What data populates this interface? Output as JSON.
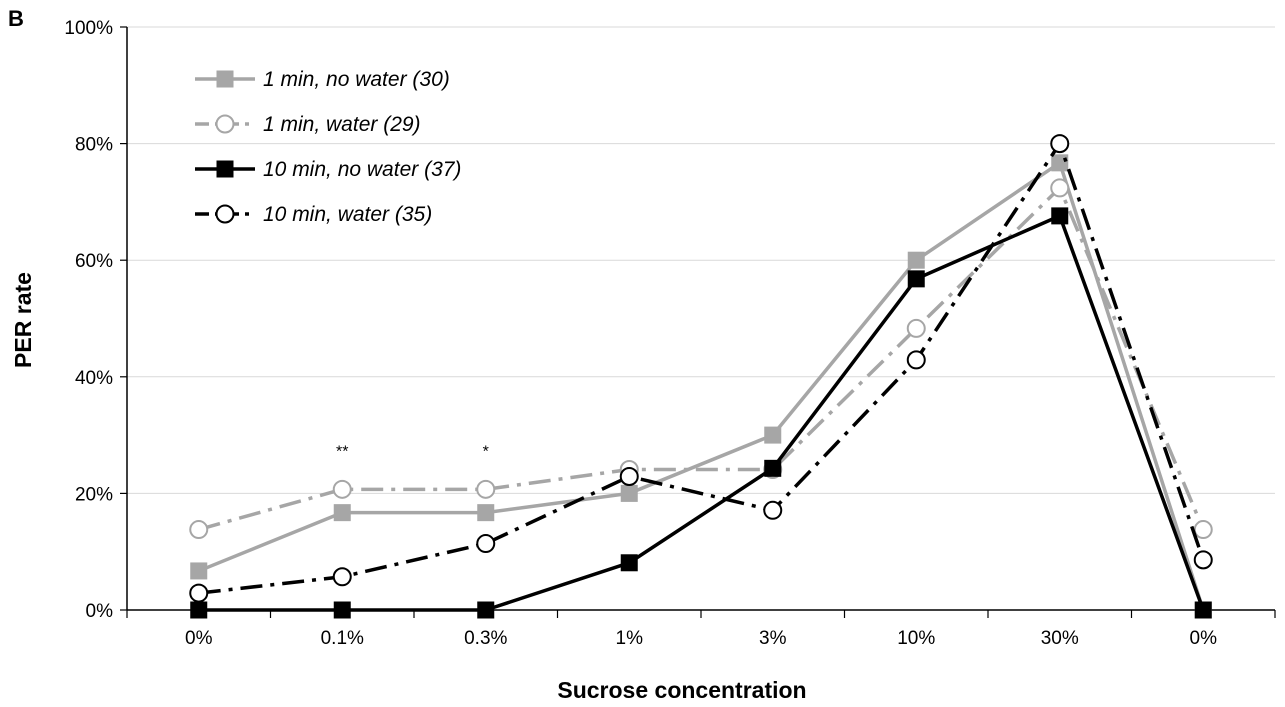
{
  "chart_data": {
    "type": "line",
    "panel_label": "B",
    "xlabel": "Sucrose concentration",
    "ylabel": "PER rate",
    "categories": [
      "0%",
      "0.1%",
      "0.3%",
      "1%",
      "3%",
      "10%",
      "30%",
      "0%"
    ],
    "ylim": [
      0,
      100
    ],
    "yticks": [
      "0%",
      "20%",
      "40%",
      "60%",
      "80%",
      "100%"
    ],
    "grid": "horizontal",
    "legend_position": "top-left",
    "series": [
      {
        "name": "1 min, no water (30)",
        "color": "#a6a6a6",
        "marker": "square",
        "line": "solid",
        "values": [
          6.7,
          16.7,
          16.7,
          20.0,
          30.0,
          60.0,
          76.7,
          0
        ]
      },
      {
        "name": "1 min, water (29)",
        "color": "#a6a6a6",
        "marker": "open-circle",
        "line": "dash-dot",
        "values": [
          13.8,
          20.7,
          20.7,
          24.1,
          24.1,
          48.3,
          72.4,
          13.8
        ]
      },
      {
        "name": "10 min, no water (37)",
        "color": "#000000",
        "marker": "square",
        "line": "solid",
        "values": [
          0,
          0,
          0,
          8.1,
          24.3,
          56.8,
          67.6,
          0
        ]
      },
      {
        "name": "10 min, water (35)",
        "color": "#000000",
        "marker": "open-circle",
        "line": "dash-dot",
        "values": [
          2.9,
          5.7,
          11.4,
          22.9,
          17.1,
          42.9,
          80.0,
          8.6
        ]
      }
    ],
    "annotations": [
      {
        "text": "**",
        "category_index": 1,
        "value": 27
      },
      {
        "text": "*",
        "category_index": 2,
        "value": 27
      }
    ]
  }
}
